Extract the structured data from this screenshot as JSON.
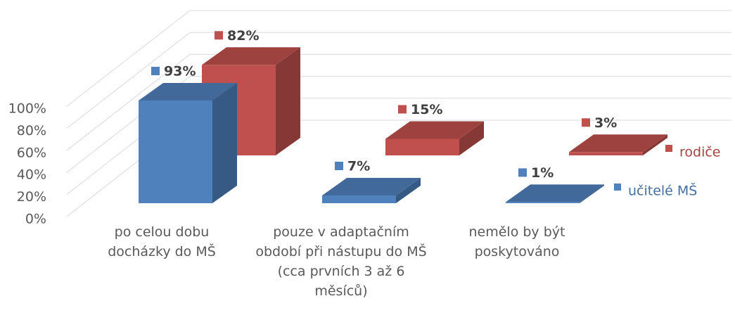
{
  "chart_data": {
    "type": "bar3d",
    "categories": [
      "po celou dobu docházky do MŠ",
      "pouze v adaptačním období při nástupu do MŠ (cca prvních 3 až 6 měsíců)",
      "nemělo by být poskytováno"
    ],
    "series": [
      {
        "name": "učitelé MŠ",
        "color": "#4f81bd",
        "values": [
          93,
          7,
          1
        ],
        "value_labels": [
          "93%",
          "7%",
          "1%"
        ]
      },
      {
        "name": "rodiče",
        "color": "#c0504d",
        "values": [
          82,
          15,
          3
        ],
        "value_labels": [
          "82%",
          "15%",
          "3%"
        ]
      }
    ],
    "ylim": [
      0,
      100
    ],
    "yticks": [
      {
        "value": 0,
        "label": "0%"
      },
      {
        "value": 20,
        "label": "20%"
      },
      {
        "value": 40,
        "label": "40%"
      },
      {
        "value": 60,
        "label": "60%"
      },
      {
        "value": 80,
        "label": "80%"
      },
      {
        "value": 100,
        "label": "100%"
      }
    ],
    "grid": true
  }
}
